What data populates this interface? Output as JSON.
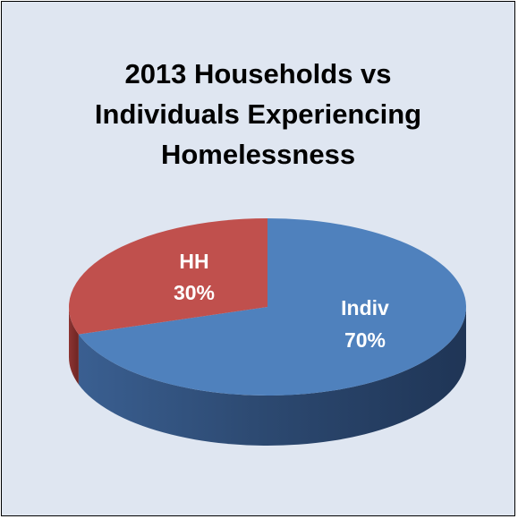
{
  "chart_data": {
    "type": "pie",
    "title_lines": [
      "2013 Households vs",
      "Individuals Experiencing",
      "Homelessness"
    ],
    "categories": [
      "Indiv",
      "HH"
    ],
    "values": [
      70,
      30
    ],
    "labels": [
      "70%",
      "30%"
    ],
    "colors": {
      "Indiv": "#4f81bd",
      "HH": "#c0504d",
      "background": "#dfe6f1"
    },
    "legend": "none",
    "style": "3d"
  }
}
